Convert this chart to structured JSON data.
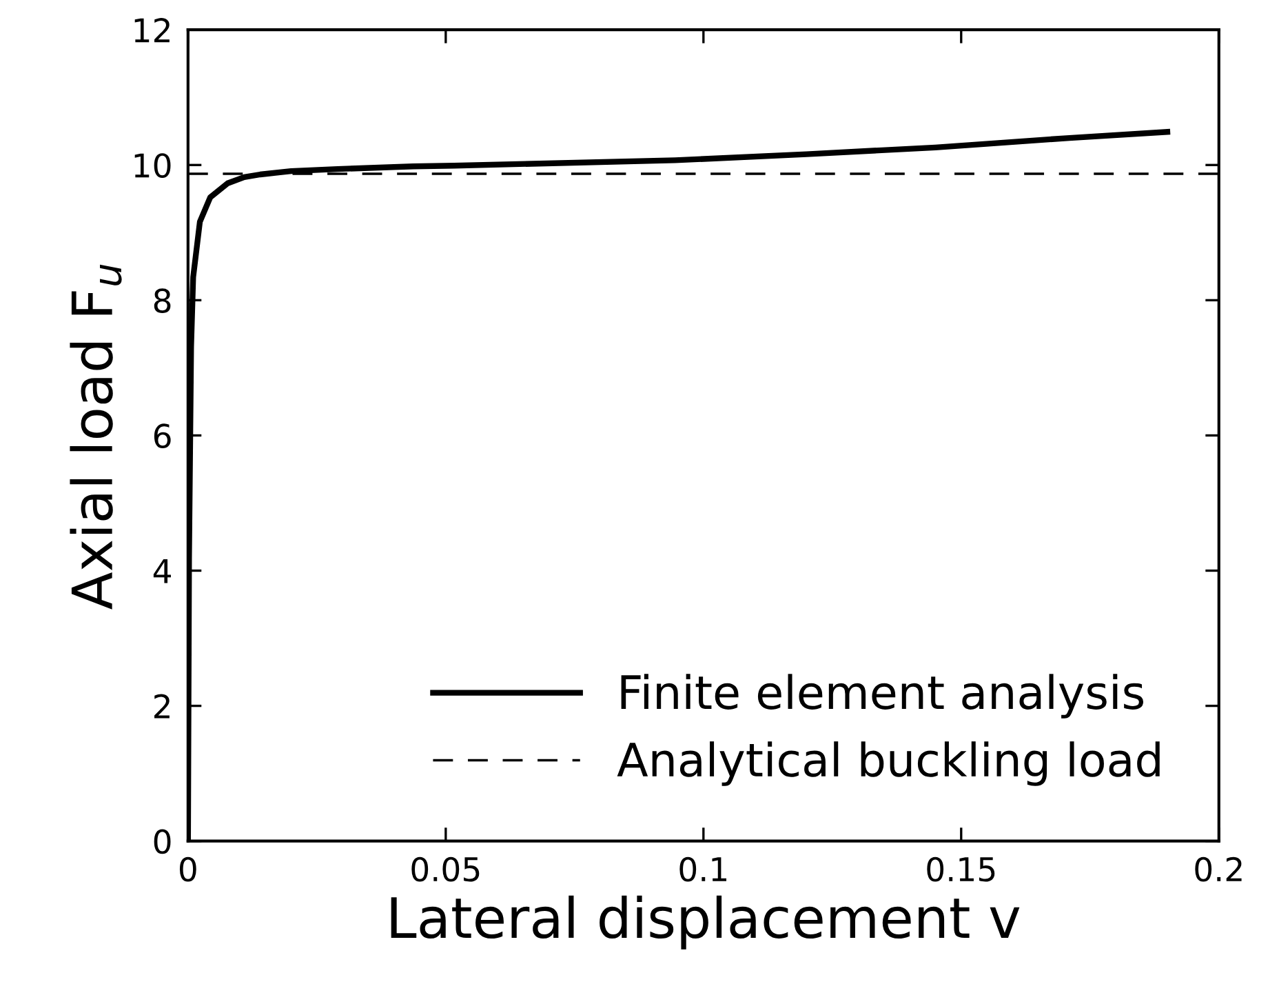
{
  "chart_data": {
    "type": "line",
    "xlabel": "Lateral displacement v",
    "ylabel": "Axial load F$_{u}$",
    "xlim": [
      0,
      0.2
    ],
    "ylim": [
      0,
      12
    ],
    "xticks": [
      0,
      0.05,
      0.1,
      0.15,
      0.2
    ],
    "yticks": [
      0,
      2,
      4,
      6,
      8,
      10,
      12
    ],
    "grid": false,
    "legend": "bottom right",
    "line_style": "solid",
    "marker": "none",
    "series": [
      {
        "name": "Finite element analysis",
        "color": "#000000",
        "x": [
          0,
          0.0002,
          0.0006,
          0.001,
          0.0023,
          0.0043,
          0.0077,
          0.0109,
          0.014,
          0.02,
          0.029,
          0.0437,
          0.0516,
          0.0945,
          0.12,
          0.145,
          0.171,
          0.19
        ],
        "values": [
          0,
          4.17,
          7.31,
          8.34,
          9.16,
          9.52,
          9.73,
          9.82,
          9.86,
          9.91,
          9.94,
          9.98,
          9.99,
          10.07,
          10.16,
          10.26,
          10.4,
          10.49
        ]
      }
    ],
    "ref_lines": [
      {
        "axis": "y",
        "value": 9.87,
        "label": "Analytical buckling load",
        "color": "#000000",
        "line_style": "dashed"
      }
    ]
  }
}
